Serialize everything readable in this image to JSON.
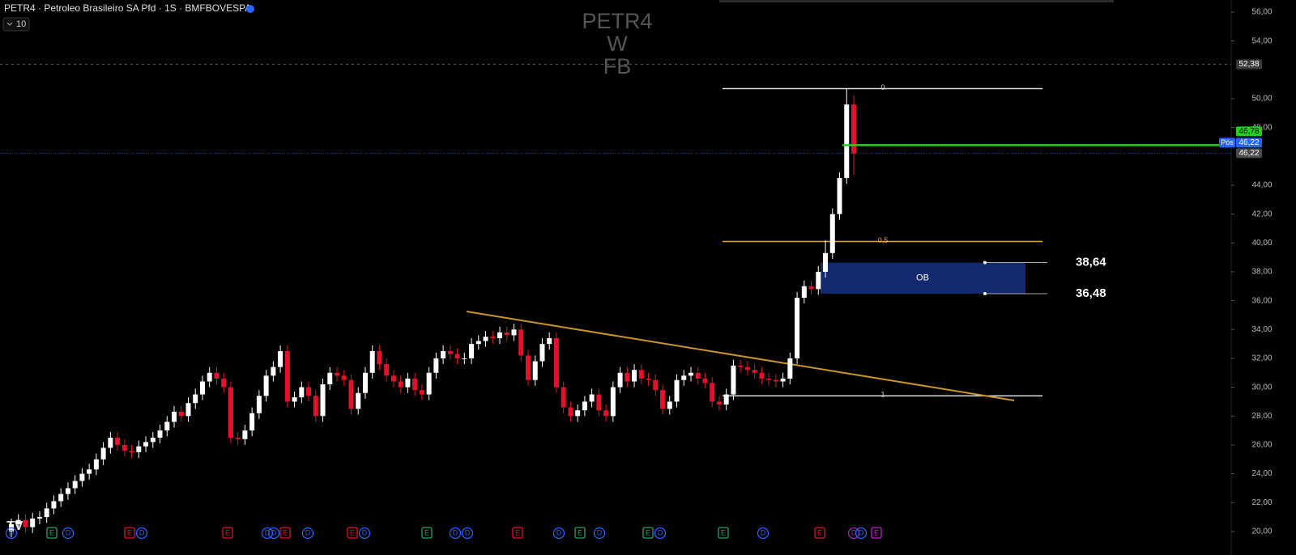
{
  "chart_data": {
    "type": "candlestick",
    "title": "PETR4 · Petroleo Brasileiro SA Pfd · 1S · BMFBOVESPA",
    "interval_input": "10",
    "watermark": [
      "PETR4",
      "W",
      "FB"
    ],
    "up_color": "#ffffff",
    "down_color": "#e3112d",
    "open": [
      20.0,
      20.5,
      20.8,
      20.3,
      20.9,
      21.0,
      21.6,
      22.1,
      22.6,
      23.0,
      23.5,
      24.0,
      24.3,
      25.0,
      25.8,
      26.5,
      26.0,
      25.6,
      25.5,
      25.9,
      26.2,
      26.5,
      27.0,
      27.6,
      28.3,
      28.0,
      28.9,
      29.5,
      30.4,
      31.0,
      30.6,
      30.0,
      26.5,
      26.4,
      27.0,
      28.2,
      29.4,
      30.8,
      31.4,
      32.5,
      29.0,
      29.3,
      30.0,
      29.4,
      28.0,
      30.2,
      31.0,
      30.8,
      30.5,
      28.5,
      29.6,
      31.0,
      32.5,
      31.6,
      30.8,
      30.4,
      30.0,
      30.6,
      29.8,
      29.5,
      31.0,
      32.0,
      32.5,
      32.3,
      32.0,
      32.0,
      33.0,
      33.2,
      33.5,
      33.4,
      33.8,
      33.6,
      34.0,
      32.2,
      30.5,
      31.8,
      33.0,
      33.4,
      30.0,
      28.6,
      28.0,
      28.4,
      29.0,
      29.5,
      28.4,
      28.0,
      30.0,
      31.0,
      30.4,
      31.2,
      30.6,
      30.5,
      29.8,
      28.5,
      29.0,
      30.5,
      30.8,
      31.0,
      30.6,
      30.3,
      29.0,
      28.8,
      29.5,
      31.5,
      31.4,
      31.2,
      31.0,
      30.6,
      30.5,
      30.4,
      30.6,
      32.0,
      36.2,
      37.0,
      36.8,
      38.0,
      39.3,
      42.0,
      44.5,
      49.6
    ],
    "high": [
      20.9,
      21.2,
      21.2,
      21.3,
      21.4,
      22.0,
      22.5,
      23.0,
      23.4,
      23.9,
      24.4,
      24.7,
      25.4,
      26.2,
      26.9,
      26.9,
      26.4,
      26.0,
      26.3,
      26.6,
      26.9,
      27.4,
      28.0,
      28.7,
      28.7,
      29.3,
      29.9,
      30.8,
      31.4,
      31.4,
      31.0,
      30.4,
      26.9,
      27.4,
      28.6,
      29.8,
      31.2,
      31.8,
      32.9,
      32.9,
      29.7,
      30.4,
      30.4,
      29.8,
      30.6,
      31.4,
      31.4,
      31.2,
      30.9,
      30.0,
      31.4,
      32.9,
      32.9,
      32.0,
      31.2,
      30.8,
      31.0,
      31.0,
      30.2,
      31.4,
      32.4,
      32.9,
      32.9,
      32.7,
      32.4,
      33.4,
      33.6,
      33.9,
      33.9,
      34.2,
      34.2,
      34.4,
      34.4,
      32.6,
      32.2,
      33.4,
      33.8,
      33.8,
      30.4,
      29.0,
      28.8,
      29.4,
      29.9,
      29.9,
      28.8,
      30.4,
      31.4,
      31.4,
      31.6,
      31.6,
      31.0,
      30.9,
      30.2,
      29.4,
      30.9,
      31.2,
      31.4,
      31.4,
      31.0,
      30.7,
      29.4,
      29.9,
      31.9,
      31.9,
      31.8,
      31.6,
      31.4,
      31.0,
      30.9,
      31.0,
      32.4,
      36.6,
      37.4,
      37.4,
      38.4,
      40.2,
      42.4,
      44.9,
      50.7,
      50.2
    ],
    "low": [
      19.6,
      20.1,
      19.9,
      19.9,
      20.5,
      20.6,
      21.2,
      21.7,
      22.2,
      22.6,
      23.1,
      23.6,
      23.9,
      24.6,
      25.4,
      25.6,
      25.2,
      25.1,
      25.1,
      25.5,
      25.8,
      26.1,
      26.6,
      27.2,
      27.6,
      27.6,
      28.5,
      29.1,
      30.0,
      30.2,
      29.6,
      26.1,
      26.0,
      26.0,
      26.6,
      27.8,
      29.0,
      30.4,
      31.0,
      28.6,
      28.6,
      28.9,
      29.0,
      27.6,
      27.6,
      29.8,
      30.4,
      30.1,
      28.1,
      28.1,
      29.2,
      30.6,
      31.2,
      30.4,
      30.0,
      29.6,
      29.6,
      29.4,
      29.1,
      29.1,
      30.6,
      31.6,
      31.9,
      31.6,
      31.6,
      31.6,
      32.6,
      32.8,
      33.0,
      33.0,
      33.2,
      33.2,
      31.8,
      30.1,
      30.1,
      31.4,
      32.6,
      29.6,
      28.2,
      27.6,
      27.6,
      28.0,
      28.6,
      28.0,
      27.6,
      27.6,
      29.6,
      30.0,
      30.0,
      30.2,
      30.1,
      29.4,
      28.1,
      28.1,
      28.6,
      30.1,
      30.4,
      30.2,
      29.9,
      28.6,
      28.4,
      28.4,
      29.1,
      31.0,
      30.8,
      30.6,
      30.2,
      30.1,
      30.0,
      30.0,
      30.2,
      31.6,
      35.8,
      36.4,
      36.4,
      37.6,
      38.9,
      41.6,
      44.1,
      44.7
    ],
    "close": [
      20.5,
      20.8,
      20.3,
      20.9,
      21.0,
      21.6,
      22.1,
      22.6,
      23.0,
      23.5,
      24.0,
      24.3,
      25.0,
      25.8,
      26.5,
      26.0,
      25.6,
      25.5,
      25.9,
      26.2,
      26.5,
      27.0,
      27.6,
      28.3,
      28.0,
      28.9,
      29.5,
      30.4,
      31.0,
      30.6,
      30.0,
      26.5,
      26.4,
      27.0,
      28.2,
      29.4,
      30.8,
      31.4,
      32.5,
      29.0,
      29.3,
      30.0,
      29.4,
      28.0,
      30.2,
      31.0,
      30.8,
      30.5,
      28.5,
      29.6,
      31.0,
      32.5,
      31.6,
      30.8,
      30.4,
      30.0,
      30.6,
      29.8,
      29.5,
      31.0,
      32.0,
      32.5,
      32.3,
      32.0,
      32.0,
      33.0,
      33.2,
      33.5,
      33.4,
      33.8,
      33.6,
      34.0,
      32.2,
      30.5,
      31.8,
      33.0,
      33.4,
      30.0,
      28.6,
      28.0,
      28.4,
      29.0,
      29.5,
      28.4,
      28.0,
      30.0,
      31.0,
      30.4,
      31.2,
      30.6,
      30.5,
      29.8,
      28.5,
      29.0,
      30.5,
      30.8,
      31.0,
      30.6,
      30.3,
      29.0,
      28.8,
      29.5,
      31.5,
      31.4,
      31.2,
      31.0,
      30.6,
      30.5,
      30.4,
      30.6,
      32.0,
      36.2,
      37.0,
      36.8,
      38.0,
      39.3,
      42.0,
      44.5,
      49.6,
      46.2
    ],
    "ylim": [
      18.37,
      56.84
    ],
    "yticks": [
      {
        "value": 20,
        "label": "20,00"
      },
      {
        "value": 22,
        "label": "22,00"
      },
      {
        "value": 24,
        "label": "24,00"
      },
      {
        "value": 26,
        "label": "26,00"
      },
      {
        "value": 28,
        "label": "28,00"
      },
      {
        "value": 30,
        "label": "30,00"
      },
      {
        "value": 32,
        "label": "32,00"
      },
      {
        "value": 34,
        "label": "34,00"
      },
      {
        "value": 36,
        "label": "36,00"
      },
      {
        "value": 38,
        "label": "38,00"
      },
      {
        "value": 40,
        "label": "40,00"
      },
      {
        "value": 42,
        "label": "42,00"
      },
      {
        "value": 44,
        "label": "44,00"
      },
      {
        "value": 48,
        "label": "48,00"
      },
      {
        "value": 50,
        "label": "50,00"
      },
      {
        "value": 54,
        "label": "54,00"
      },
      {
        "value": 56,
        "label": "56,00"
      }
    ],
    "price_badges": [
      {
        "value": 52.38,
        "label": "52,38",
        "color": "#3a3a3a"
      },
      {
        "value": 46.78,
        "label": "46,78",
        "color": "#22d11f"
      },
      {
        "value": 46.22,
        "label": "46,22",
        "color": "#2962ff"
      },
      {
        "value": 46.22,
        "label": "46,22",
        "color": "#4a4a4a"
      }
    ],
    "position_label": "Pós",
    "fib_levels": [
      {
        "value": 50.7,
        "label": "0",
        "color": "#d8d8d8"
      },
      {
        "value": 40.1,
        "label": "0,5",
        "color": "#e3a33a"
      },
      {
        "value": 29.4,
        "label": "1",
        "color": "#d8d8d8"
      }
    ],
    "order_block": {
      "label": "OB",
      "top": 38.64,
      "bottom": 36.48,
      "top_label": "38,64",
      "bottom_label": "36,48",
      "color": "#142a6e"
    },
    "trendline": {
      "start": 35.25,
      "end": 29.08,
      "color": "#c8952c"
    },
    "events": [
      {
        "label": "D",
        "color": "#2962ff"
      },
      {
        "label": "E",
        "color": "#26a269"
      },
      {
        "label": "D",
        "color": "#2962ff"
      },
      {
        "label": "E",
        "color": "#e3112d"
      },
      {
        "label": "D",
        "color": "#2962ff"
      },
      {
        "label": "E",
        "color": "#e3112d"
      },
      {
        "label": "D",
        "color": "#2962ff"
      },
      {
        "label": "D",
        "color": "#2962ff"
      },
      {
        "label": "E",
        "color": "#e3112d"
      },
      {
        "label": "D",
        "color": "#2962ff"
      },
      {
        "label": "E",
        "color": "#e3112d"
      },
      {
        "label": "D",
        "color": "#2962ff"
      },
      {
        "label": "E",
        "color": "#26a269"
      },
      {
        "label": "D",
        "color": "#2962ff"
      },
      {
        "label": "D",
        "color": "#2962ff"
      },
      {
        "label": "E",
        "color": "#e3112d"
      },
      {
        "label": "D",
        "color": "#2962ff"
      },
      {
        "label": "E",
        "color": "#26a269"
      },
      {
        "label": "D",
        "color": "#2962ff"
      },
      {
        "label": "E",
        "color": "#26a269"
      },
      {
        "label": "D",
        "color": "#2962ff"
      },
      {
        "label": "E",
        "color": "#26a269"
      },
      {
        "label": "D",
        "color": "#2962ff"
      },
      {
        "label": "E",
        "color": "#e3112d"
      },
      {
        "label": "D",
        "color": "#9c27b0"
      },
      {
        "label": "D",
        "color": "#2962ff"
      },
      {
        "label": "E",
        "color": "#c020c8"
      }
    ]
  }
}
